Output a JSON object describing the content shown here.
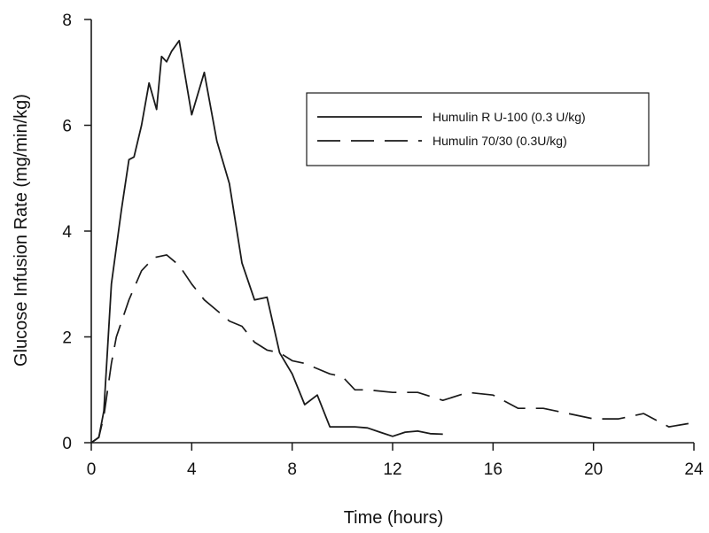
{
  "chart_data": {
    "type": "line",
    "title": "",
    "xlabel": "Time (hours)",
    "ylabel": "Glucose Infusion Rate (mg/min/kg)",
    "xlim": [
      0,
      24
    ],
    "ylim": [
      0,
      8
    ],
    "xticks": [
      0,
      4,
      8,
      12,
      16,
      20,
      24
    ],
    "yticks": [
      0,
      2,
      4,
      6,
      8
    ],
    "xtick_labels": [
      "0",
      "4",
      "8",
      "12",
      "16",
      "20",
      "24"
    ],
    "ytick_labels": [
      "0",
      "2",
      "4",
      "6",
      "8"
    ],
    "grid": false,
    "legend_position": "upper-right",
    "series": [
      {
        "name": "Humulin R U-100 (0.3 U/kg)",
        "style": "solid",
        "color": "#1a1a1a",
        "x": [
          0,
          0.3,
          0.5,
          0.8,
          1.2,
          1.5,
          1.7,
          2.0,
          2.3,
          2.6,
          2.8,
          3.0,
          3.2,
          3.5,
          4.0,
          4.5,
          5.0,
          5.5,
          6.0,
          6.5,
          7.0,
          7.5,
          8.0,
          8.5,
          9.0,
          9.5,
          10.0,
          10.5,
          11.0,
          11.5,
          12.0,
          12.5,
          13.0,
          13.5,
          14.0
        ],
        "y": [
          0,
          0.1,
          0.6,
          3.0,
          4.4,
          5.35,
          5.4,
          6.0,
          6.8,
          6.3,
          7.3,
          7.2,
          7.4,
          7.6,
          6.2,
          7.0,
          5.7,
          4.9,
          3.4,
          2.7,
          2.75,
          1.7,
          1.3,
          0.72,
          0.9,
          0.3,
          0.3,
          0.3,
          0.28,
          0.2,
          0.12,
          0.2,
          0.22,
          0.17,
          0.16
        ]
      },
      {
        "name": "Humulin 70/30 (0.3U/kg)",
        "style": "dashed",
        "color": "#1a1a1a",
        "x": [
          0,
          0.3,
          0.5,
          0.8,
          1.0,
          1.5,
          2.0,
          2.5,
          3.0,
          3.5,
          4.0,
          4.5,
          5.0,
          5.5,
          6.0,
          6.5,
          7.0,
          7.5,
          8.0,
          8.5,
          9.0,
          9.5,
          10.0,
          10.5,
          11.0,
          12.0,
          13.0,
          14.0,
          15.0,
          16.0,
          17.0,
          18.0,
          19.0,
          20.0,
          21.0,
          22.0,
          23.0,
          24.0
        ],
        "y": [
          0,
          0.1,
          0.5,
          1.5,
          2.0,
          2.7,
          3.25,
          3.5,
          3.55,
          3.35,
          3.0,
          2.7,
          2.5,
          2.3,
          2.2,
          1.9,
          1.75,
          1.7,
          1.55,
          1.5,
          1.4,
          1.3,
          1.25,
          1.0,
          1.0,
          0.95,
          0.95,
          0.8,
          0.95,
          0.9,
          0.65,
          0.65,
          0.55,
          0.45,
          0.45,
          0.55,
          0.3,
          0.38
        ]
      }
    ]
  }
}
